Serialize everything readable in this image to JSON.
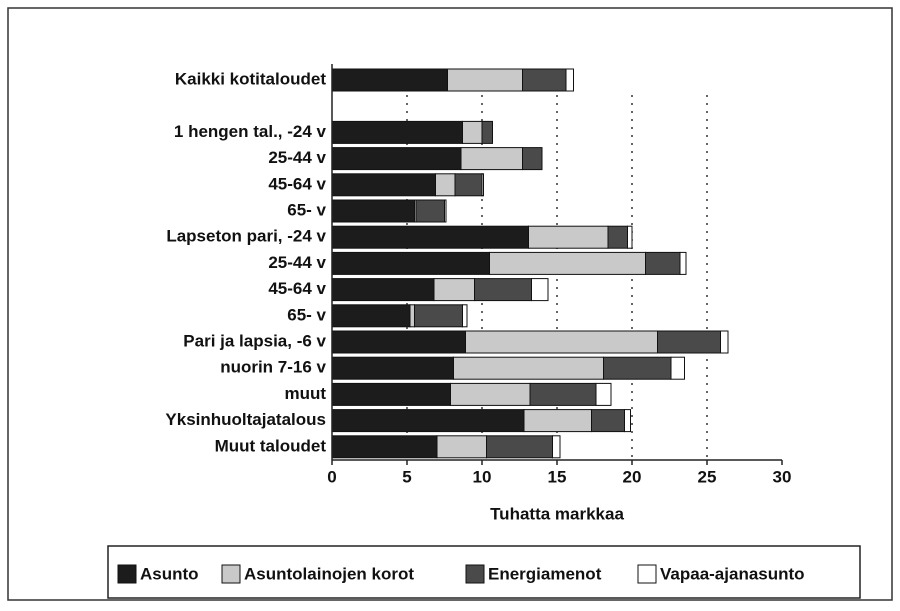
{
  "chart_data": {
    "type": "bar",
    "orientation": "horizontal",
    "stacked": true,
    "xlabel": "Tuhatta markkaa",
    "categories": [
      "Kaikki kotitaloudet",
      null,
      "1 hengen tal., -24 v",
      "25-44 v",
      "45-64 v",
      "65- v",
      "Lapseton pari, -24 v",
      "25-44 v",
      "45-64 v",
      "65- v",
      "Pari ja lapsia, -6 v",
      "nuorin 7-16 v",
      "muut",
      "Yksinhuoltajatalous",
      "Muut taloudet"
    ],
    "series": [
      {
        "name": "Asunto",
        "color": "#1c1c1c",
        "values": [
          7.7,
          null,
          8.7,
          8.6,
          6.9,
          5.5,
          13.1,
          10.5,
          6.8,
          5.2,
          8.9,
          8.1,
          7.9,
          12.8,
          7.0
        ]
      },
      {
        "name": "Asuntolainojen korot",
        "color": "#c9c9c9",
        "values": [
          5.0,
          null,
          1.3,
          4.1,
          1.3,
          0.1,
          5.3,
          10.4,
          2.7,
          0.3,
          12.8,
          10.0,
          5.3,
          4.5,
          3.3
        ]
      },
      {
        "name": "Energiamenot",
        "color": "#4a4a4a",
        "values": [
          2.9,
          null,
          0.7,
          1.3,
          1.8,
          1.9,
          1.3,
          2.3,
          3.8,
          3.2,
          4.2,
          4.5,
          4.4,
          2.2,
          4.4
        ]
      },
      {
        "name": "Vapaa-ajanasunto",
        "color": "#ffffff",
        "values": [
          0.5,
          null,
          0,
          0,
          0.1,
          0.1,
          0.3,
          0.4,
          1.1,
          0.3,
          0.5,
          0.9,
          1.0,
          0.4,
          0.5
        ]
      }
    ],
    "xlim": [
      0,
      30
    ],
    "xticks": [
      0,
      5,
      10,
      15,
      20,
      25,
      30
    ],
    "grid": true,
    "legend": "bottom"
  }
}
